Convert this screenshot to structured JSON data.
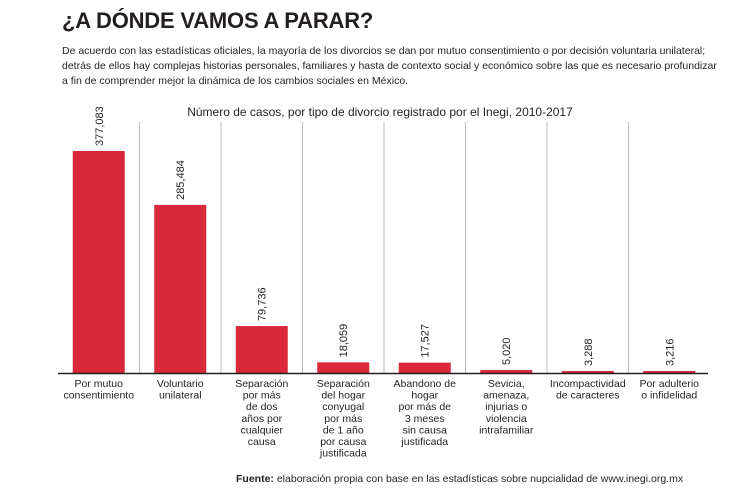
{
  "headline": "¿A DÓNDE VAMOS A PARAR?",
  "intro_lines": [
    "De acuerdo con las estadísticas oficiales, la mayoría de los divorcios se dan por mutuo consentimiento o por decisión voluntaria unilateral;",
    "detrás de ellos hay complejas historias personales, familiares y  hasta de contexto social y económico sobre las que es necesario profundizar",
    "a fin de comprender mejor la dinámica de los cambios sociales en México."
  ],
  "source": {
    "label": "Fuente:",
    "text": " elaboración propia con base en las estadísticas sobre nupcialidad de www.inegi.org.mx"
  },
  "colors": {
    "bar": "#d8283a",
    "gridline": "#bdbdbd",
    "baseline": "#231f20"
  },
  "chart_data": {
    "type": "bar",
    "title": "Número de casos, por tipo de divorcio registrado por el Inegi, 2010-2017",
    "categories": [
      [
        "Por mutuo",
        "consentimiento"
      ],
      [
        "Voluntario",
        "unilateral"
      ],
      [
        "Separación",
        "por más",
        "de dos",
        "años por",
        "cualquier",
        "causa"
      ],
      [
        "Separación",
        "del hogar",
        "conyugal",
        "por más",
        "de 1 año",
        "por causa",
        "justificada"
      ],
      [
        "Abandono de",
        "hogar",
        "por más de",
        "3 meses",
        "sin causa",
        "justificada"
      ],
      [
        "Sevicia,",
        "amenaza,",
        "injurias o",
        "violencia",
        "intrafamiliar"
      ],
      [
        "Incompactividad",
        "de caracteres"
      ],
      [
        "Por adulterio",
        "o infidelidad"
      ]
    ],
    "values": [
      377083,
      285484,
      79736,
      18059,
      17527,
      5020,
      3288,
      3216
    ],
    "value_labels": [
      "377,083",
      "285,484",
      "79,736",
      "18,059",
      "17,527",
      "5,020",
      "3,288",
      "3,216"
    ],
    "ylim": [
      0,
      377083
    ],
    "grid": true,
    "xlabel": "",
    "ylabel": ""
  }
}
